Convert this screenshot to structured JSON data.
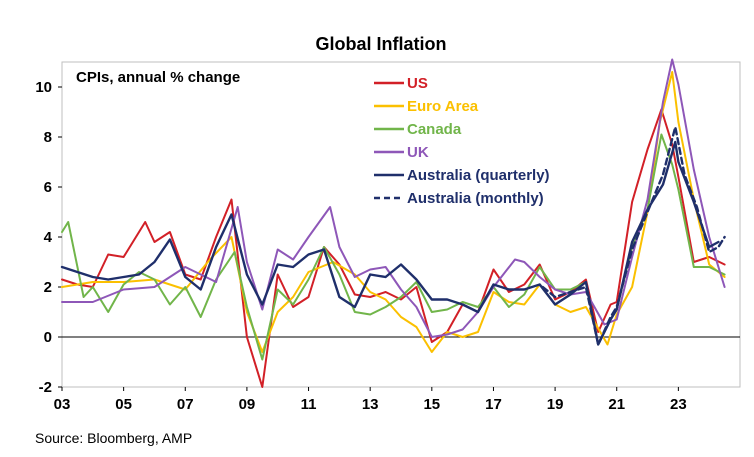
{
  "source": "Source: Bloomberg, AMP",
  "chart_data": {
    "type": "line",
    "title": "Global Inflation",
    "note": "CPIs, annual % change",
    "xlabel": "",
    "ylabel": "",
    "xlim": [
      2003,
      2025
    ],
    "ylim": [
      -2,
      11
    ],
    "y_ticks": [
      -2,
      0,
      2,
      4,
      6,
      8,
      10
    ],
    "x_ticks": [
      {
        "value": 2003,
        "label": "03"
      },
      {
        "value": 2005,
        "label": "05"
      },
      {
        "value": 2007,
        "label": "07"
      },
      {
        "value": 2009,
        "label": "09"
      },
      {
        "value": 2011,
        "label": "11"
      },
      {
        "value": 2013,
        "label": "13"
      },
      {
        "value": 2015,
        "label": "15"
      },
      {
        "value": 2017,
        "label": "17"
      },
      {
        "value": 2019,
        "label": "19"
      },
      {
        "value": 2021,
        "label": "21"
      },
      {
        "value": 2023,
        "label": "23"
      }
    ],
    "grid": false,
    "legend": "top",
    "series": [
      {
        "name": "US",
        "color": "#d22027",
        "dash": false,
        "x": [
          2003,
          2003.5,
          2004,
          2004.5,
          2005,
          2005.7,
          2006,
          2006.5,
          2007,
          2007.5,
          2008,
          2008.5,
          2009,
          2009.5,
          2010,
          2010.5,
          2011,
          2011.5,
          2012,
          2012.5,
          2013,
          2013.5,
          2014,
          2014.5,
          2015,
          2015.5,
          2016,
          2016.5,
          2017,
          2017.5,
          2018,
          2018.5,
          2019,
          2019.5,
          2020,
          2020.4,
          2020.8,
          2021,
          2021.5,
          2022,
          2022.45,
          2022.8,
          2023,
          2023.5,
          2024,
          2024.5
        ],
        "y": [
          2.3,
          2.1,
          2.0,
          3.3,
          3.2,
          4.6,
          3.8,
          4.2,
          2.5,
          2.3,
          4.0,
          5.5,
          0.0,
          -2.0,
          2.5,
          1.2,
          1.6,
          3.6,
          2.9,
          1.7,
          1.6,
          1.8,
          1.5,
          2.0,
          -0.2,
          0.2,
          1.3,
          1.0,
          2.7,
          1.8,
          2.1,
          2.9,
          1.5,
          1.8,
          2.3,
          0.2,
          1.3,
          1.4,
          5.4,
          7.5,
          9.1,
          7.7,
          6.4,
          3.0,
          3.2,
          2.9
        ]
      },
      {
        "name": "Euro Area",
        "color": "#fbc000",
        "dash": false,
        "x": [
          2003,
          2004,
          2005,
          2006,
          2007,
          2007.8,
          2008.5,
          2009,
          2009.5,
          2010,
          2010.5,
          2011,
          2011.8,
          2012.5,
          2013,
          2013.5,
          2014,
          2014.5,
          2015,
          2015.5,
          2016,
          2016.5,
          2017,
          2017.5,
          2018,
          2018.5,
          2019,
          2019.5,
          2020,
          2020.7,
          2021,
          2021.5,
          2022,
          2022.4,
          2022.8,
          2023,
          2023.5,
          2024,
          2024.5
        ],
        "y": [
          2.0,
          2.2,
          2.2,
          2.3,
          1.9,
          3.1,
          4.0,
          1.0,
          -0.6,
          1.0,
          1.6,
          2.6,
          3.0,
          2.5,
          1.8,
          1.5,
          0.8,
          0.4,
          -0.6,
          0.2,
          0.0,
          0.2,
          1.8,
          1.4,
          1.3,
          2.1,
          1.3,
          1.0,
          1.2,
          -0.3,
          0.9,
          2.0,
          5.0,
          8.6,
          10.6,
          8.6,
          5.5,
          2.9,
          2.4
        ]
      },
      {
        "name": "Canada",
        "color": "#71b54a",
        "dash": false,
        "x": [
          2003,
          2003.2,
          2003.7,
          2004,
          2004.5,
          2005,
          2005.5,
          2006,
          2006.5,
          2007,
          2007.5,
          2008,
          2008.6,
          2009,
          2009.5,
          2010,
          2010.5,
          2011,
          2011.5,
          2012,
          2012.5,
          2013,
          2013.5,
          2014,
          2014.5,
          2015,
          2015.5,
          2016,
          2016.5,
          2017,
          2017.5,
          2018,
          2018.5,
          2019,
          2019.5,
          2020,
          2020.4,
          2020.8,
          2021,
          2021.5,
          2022,
          2022.45,
          2022.8,
          2023,
          2023.5,
          2024,
          2024.5
        ],
        "y": [
          4.2,
          4.6,
          1.6,
          2.0,
          1.0,
          2.1,
          2.6,
          2.3,
          1.3,
          2.0,
          0.8,
          2.3,
          3.4,
          1.2,
          -0.9,
          1.9,
          1.3,
          2.3,
          3.6,
          2.5,
          1.0,
          0.9,
          1.2,
          1.6,
          2.2,
          1.0,
          1.1,
          1.4,
          1.2,
          2.0,
          1.2,
          1.7,
          2.8,
          1.9,
          1.9,
          2.2,
          -0.3,
          0.7,
          1.1,
          3.6,
          5.1,
          8.1,
          6.9,
          5.9,
          2.8,
          2.8,
          2.5
        ]
      },
      {
        "name": "UK",
        "color": "#8e57b8",
        "dash": false,
        "x": [
          2003,
          2004,
          2005,
          2006,
          2007,
          2008,
          2008.7,
          2009,
          2009.5,
          2010,
          2010.5,
          2011,
          2011.7,
          2012,
          2012.5,
          2013,
          2013.5,
          2014,
          2014.5,
          2015,
          2015.5,
          2016,
          2016.5,
          2017,
          2017.7,
          2018,
          2018.5,
          2019,
          2019.5,
          2020,
          2020.6,
          2021,
          2021.5,
          2022,
          2022.5,
          2022.8,
          2023,
          2023.5,
          2024,
          2024.5
        ],
        "y": [
          1.4,
          1.4,
          1.9,
          2.0,
          2.8,
          2.2,
          5.2,
          3.0,
          1.1,
          3.5,
          3.1,
          4.0,
          5.2,
          3.6,
          2.4,
          2.7,
          2.8,
          1.9,
          1.2,
          0.0,
          0.1,
          0.3,
          1.0,
          2.0,
          3.1,
          3.0,
          2.4,
          1.9,
          1.7,
          1.8,
          0.5,
          0.7,
          3.2,
          5.5,
          9.4,
          11.1,
          10.1,
          6.7,
          4.0,
          2.0
        ]
      },
      {
        "name": "Australia (quarterly)",
        "color": "#1f2f6b",
        "dash": false,
        "x": [
          2003,
          2003.5,
          2004,
          2004.5,
          2005,
          2005.5,
          2006,
          2006.5,
          2007,
          2007.5,
          2008,
          2008.5,
          2009,
          2009.5,
          2010,
          2010.5,
          2011,
          2011.5,
          2012,
          2012.5,
          2013,
          2013.5,
          2014,
          2014.5,
          2015,
          2015.5,
          2016,
          2016.5,
          2017,
          2017.5,
          2018,
          2018.5,
          2019,
          2019.5,
          2020,
          2020.4,
          2020.8,
          2021,
          2021.5,
          2022,
          2022.5,
          2022.9,
          2023,
          2023.5,
          2024,
          2024.3
        ],
        "y": [
          2.8,
          2.6,
          2.4,
          2.3,
          2.4,
          2.5,
          3.0,
          3.9,
          2.4,
          1.9,
          3.6,
          4.9,
          2.5,
          1.3,
          2.9,
          2.8,
          3.3,
          3.5,
          1.6,
          1.2,
          2.5,
          2.4,
          2.9,
          2.3,
          1.5,
          1.5,
          1.3,
          1.0,
          2.1,
          1.9,
          1.9,
          2.1,
          1.3,
          1.7,
          2.2,
          -0.3,
          0.7,
          1.1,
          3.8,
          5.1,
          6.1,
          7.8,
          7.0,
          5.4,
          3.6,
          3.8
        ]
      },
      {
        "name": "Australia (monthly)",
        "color": "#1f2f6b",
        "dash": true,
        "x": [
          2018.6,
          2019,
          2019.5,
          2020,
          2020.4,
          2020.8,
          2021,
          2021.5,
          2022,
          2022.5,
          2022.9,
          2023.2,
          2023.6,
          2024,
          2024.3,
          2024.5
        ],
        "y": [
          2.0,
          1.6,
          1.8,
          2.0,
          -0.3,
          0.8,
          1.2,
          3.5,
          5.0,
          6.5,
          8.4,
          6.5,
          5.2,
          3.4,
          3.6,
          4.0
        ]
      }
    ]
  }
}
